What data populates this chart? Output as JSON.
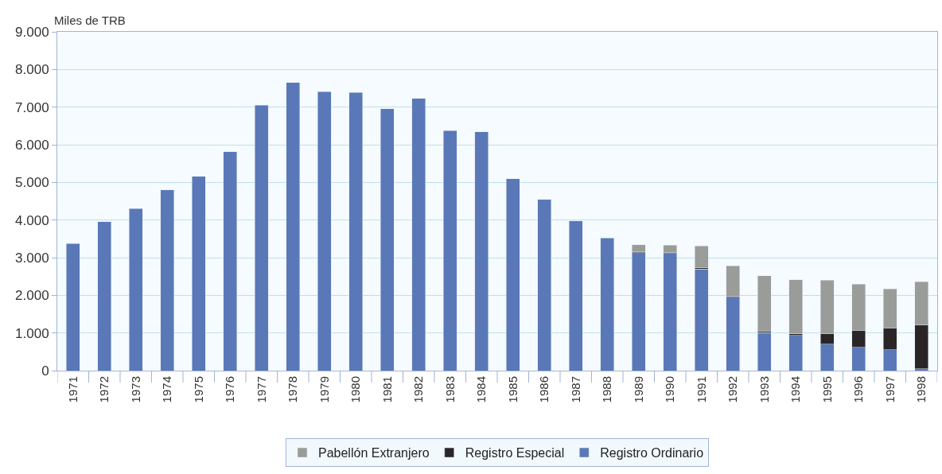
{
  "chart_data": {
    "type": "bar",
    "stacked": true,
    "ylabel": "Miles de TRB",
    "categories": [
      "1971",
      "1972",
      "1973",
      "1974",
      "1975",
      "1976",
      "1977",
      "1978",
      "1979",
      "1980",
      "1981",
      "1982",
      "1983",
      "1984",
      "1985",
      "1986",
      "1987",
      "1988",
      "1989",
      "1990",
      "1991",
      "1992",
      "1993",
      "1994",
      "1995",
      "1996",
      "1997",
      "1998"
    ],
    "series": [
      {
        "name": "Registro Ordinario",
        "color": "#5a78b8",
        "values": [
          3380,
          3960,
          4300,
          4800,
          5160,
          5820,
          7050,
          7650,
          7410,
          7390,
          6960,
          7230,
          6380,
          6340,
          5100,
          4550,
          3980,
          3520,
          3130,
          3110,
          2700,
          1950,
          1010,
          930,
          700,
          620,
          550,
          50
        ]
      },
      {
        "name": "Registro Especial",
        "color": "#2a2628",
        "values": [
          null,
          null,
          null,
          null,
          null,
          null,
          null,
          null,
          null,
          null,
          null,
          null,
          null,
          null,
          null,
          null,
          null,
          null,
          30,
          30,
          30,
          30,
          40,
          50,
          290,
          450,
          590,
          1160
        ]
      },
      {
        "name": "Pabellón Extranjero",
        "color": "#9a9c9a",
        "values": [
          null,
          null,
          null,
          null,
          null,
          null,
          null,
          null,
          null,
          null,
          null,
          null,
          null,
          null,
          null,
          null,
          null,
          null,
          180,
          190,
          580,
          800,
          1470,
          1430,
          1410,
          1230,
          1030,
          1150
        ]
      }
    ],
    "ylim": [
      0,
      9000
    ],
    "yticks": [
      0,
      {
        "value": 1000,
        "label": "1.000"
      },
      {
        "value": 2000,
        "label": "2.000"
      },
      {
        "value": 3000,
        "label": "3.000"
      },
      {
        "value": 4000,
        "label": "4.000"
      },
      {
        "value": 5000,
        "label": "5.000"
      },
      {
        "value": 6000,
        "label": "6.000"
      },
      {
        "value": 7000,
        "label": "7.000"
      },
      {
        "value": 8000,
        "label": "8.000"
      },
      {
        "value": 9000,
        "label": "9.000"
      }
    ],
    "grid": "y",
    "legend": "bottom"
  }
}
